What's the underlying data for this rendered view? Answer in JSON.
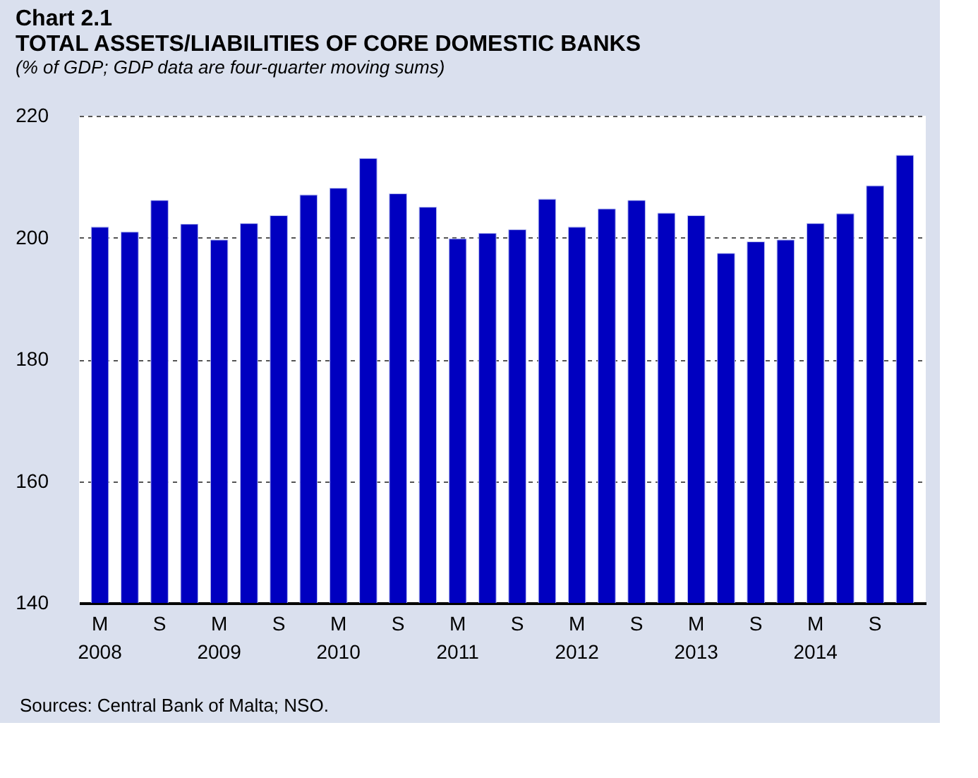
{
  "chart_data": {
    "type": "bar",
    "title": "Chart 2.1",
    "subtitle": "TOTAL ASSETS/LIABILITIES OF CORE DOMESTIC BANKS",
    "ylabel": "(% of GDP; GDP data are four-quarter moving sums)",
    "categories": [
      "M\n2008",
      null,
      "S",
      null,
      "M\n2009",
      null,
      "S",
      null,
      "M\n2010",
      null,
      "S",
      null,
      "M\n2011",
      null,
      "S",
      null,
      "M\n2012",
      null,
      "S",
      null,
      "M\n2013",
      null,
      "S",
      null,
      "M\n2014",
      null,
      "S",
      null
    ],
    "values": [
      201.7,
      200.9,
      206.1,
      202.2,
      199.6,
      202.3,
      203.6,
      207.0,
      208.1,
      213.0,
      207.2,
      205.0,
      199.8,
      200.7,
      201.3,
      206.3,
      201.7,
      204.7,
      206.1,
      204.0,
      203.6,
      197.4,
      199.3,
      199.6,
      202.3,
      203.9,
      208.5,
      213.5
    ],
    "color": "#0000c0",
    "ylim": [
      140,
      220
    ],
    "yticks": [
      140,
      160,
      180,
      200,
      220
    ],
    "grid": "y",
    "annotations": [
      "Sources: Central Bank of Malta; NSO."
    ]
  }
}
